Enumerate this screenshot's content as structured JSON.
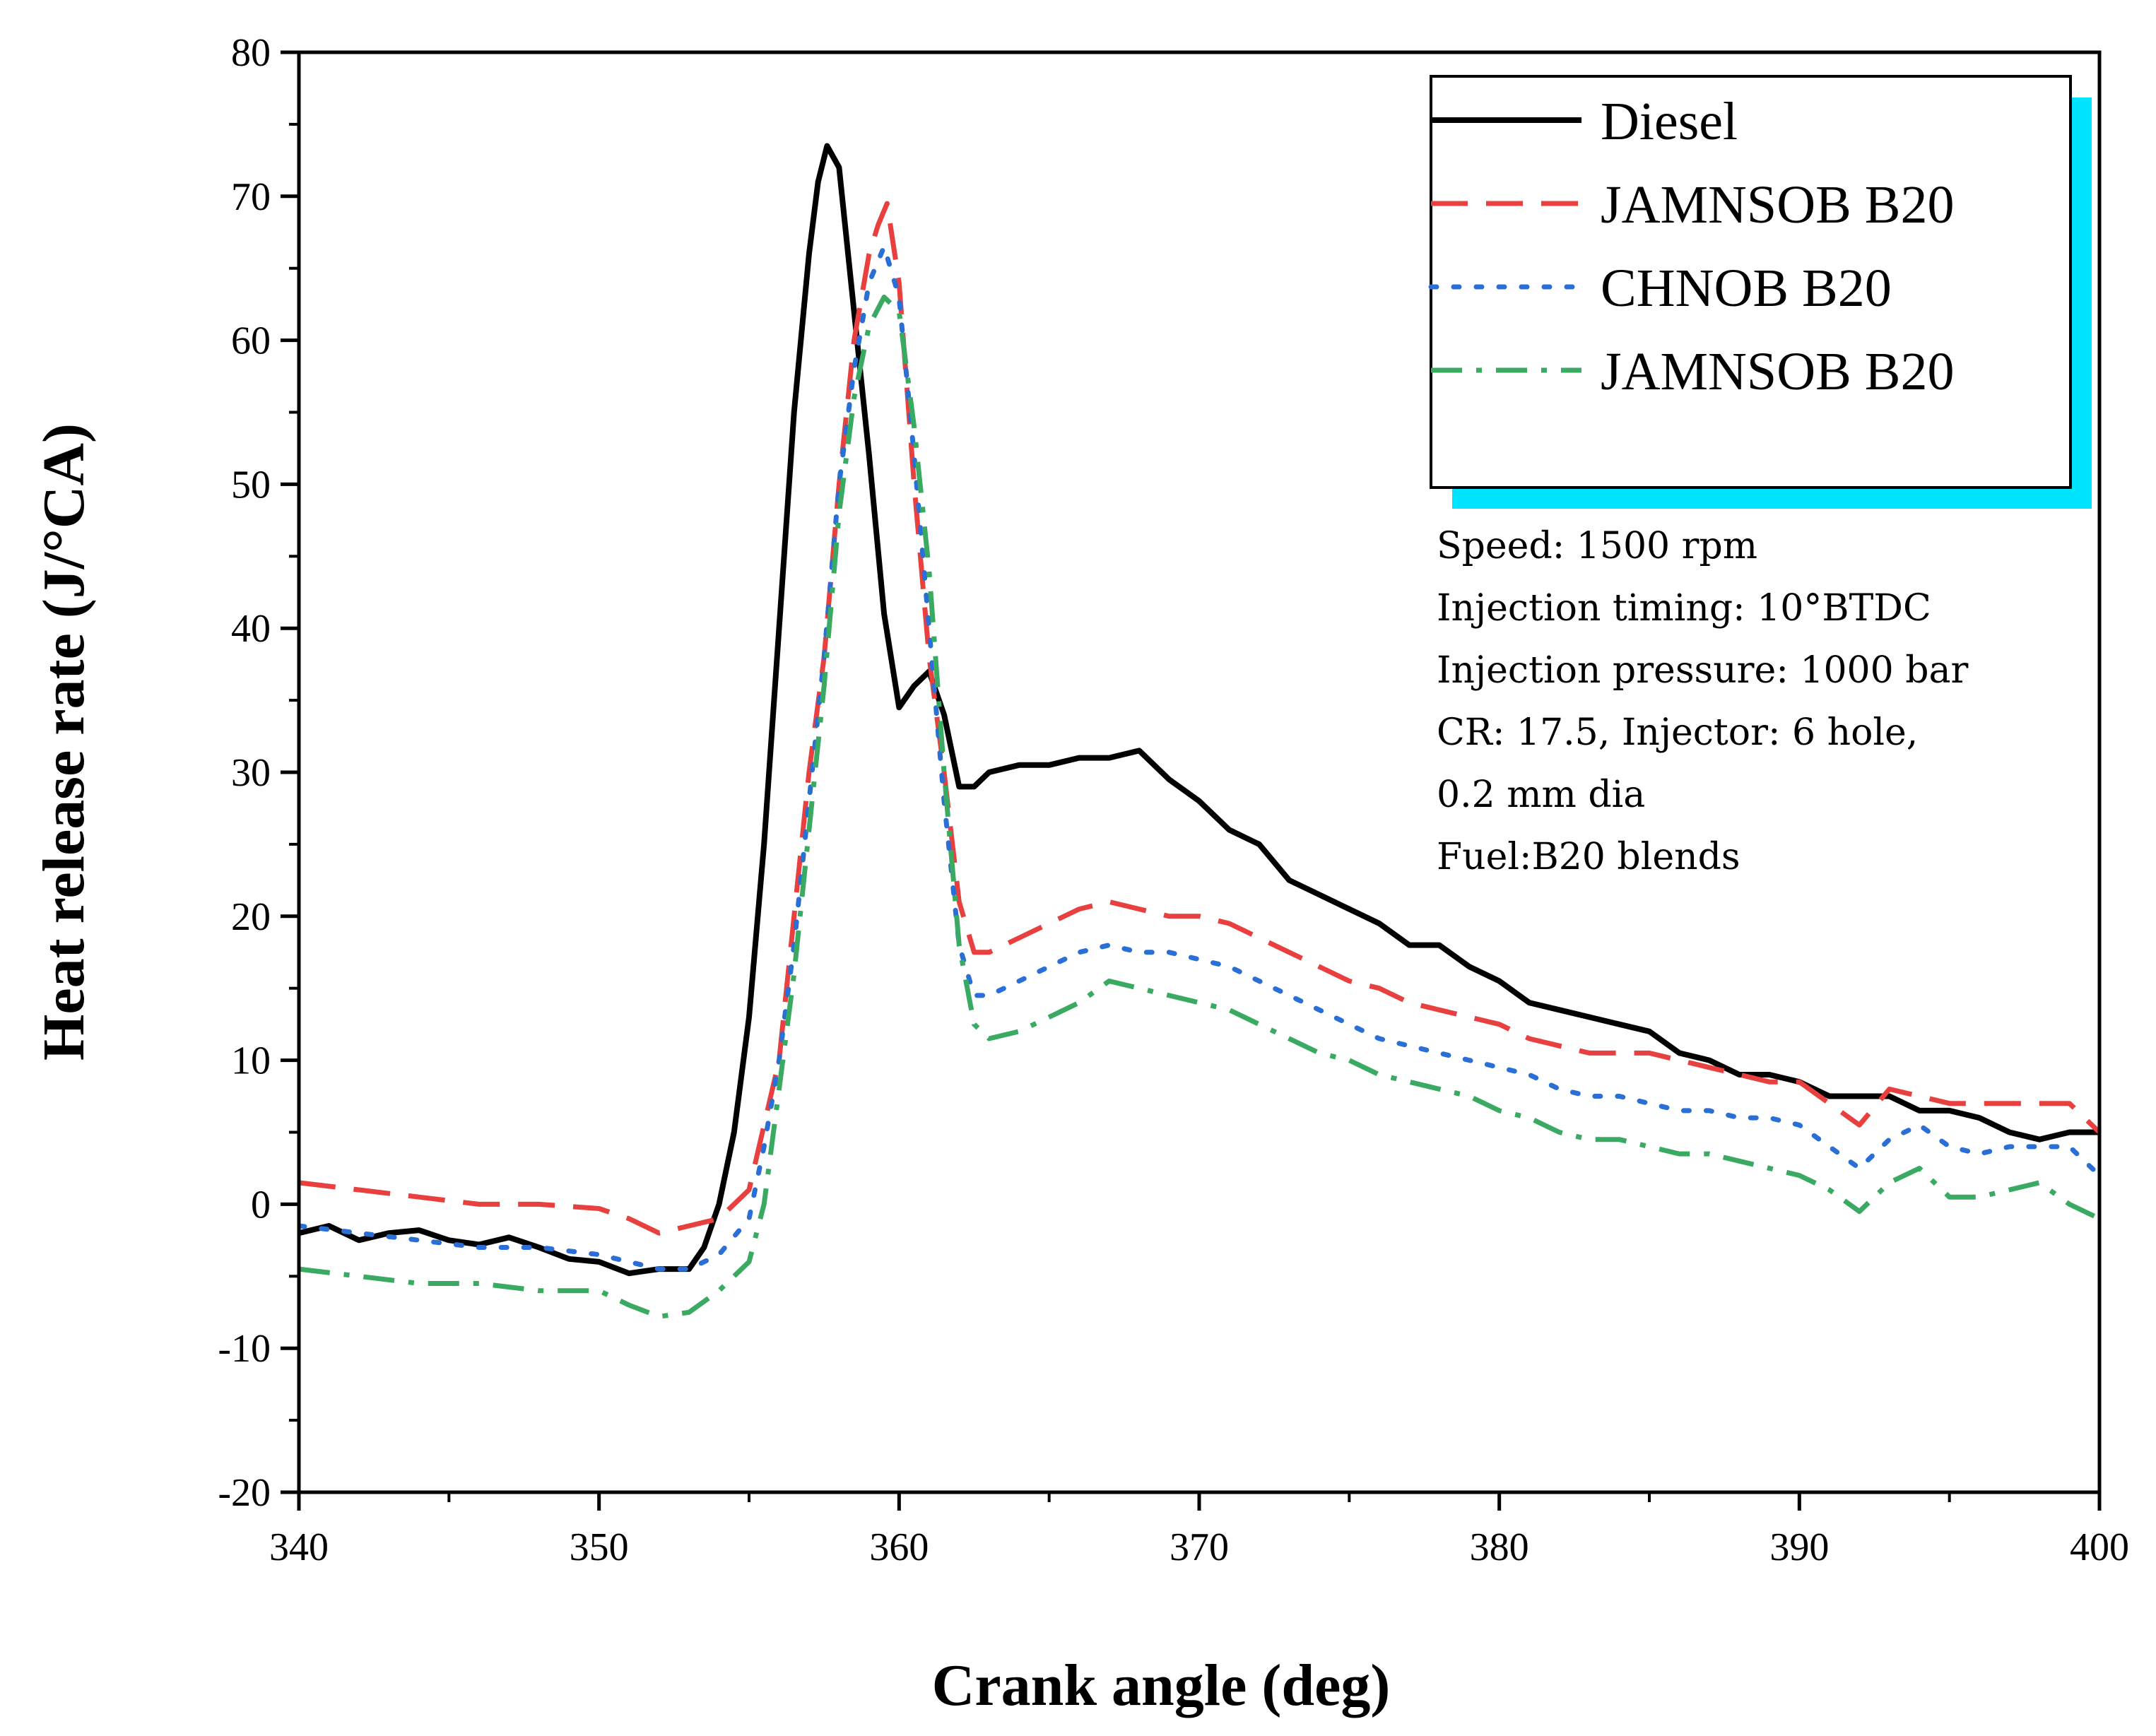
{
  "chart_data": {
    "type": "line",
    "title": "",
    "xlabel": "Crank angle (deg)",
    "ylabel": "Heat release rate (J/°CA)",
    "xlim": [
      340,
      400
    ],
    "ylim": [
      -20,
      80
    ],
    "xticks": [
      340,
      350,
      360,
      370,
      380,
      390,
      400
    ],
    "yticks": [
      -20,
      -10,
      0,
      10,
      20,
      30,
      40,
      50,
      60,
      70,
      80
    ],
    "grid": false,
    "legend_position": "top-right",
    "series": [
      {
        "name": "Diesel",
        "color": "#000000",
        "style": "solid",
        "points": [
          [
            340,
            -2
          ],
          [
            341,
            -1.5
          ],
          [
            342,
            -2.5
          ],
          [
            343,
            -2
          ],
          [
            344,
            -1.8
          ],
          [
            345,
            -2.5
          ],
          [
            346,
            -2.8
          ],
          [
            347,
            -2.3
          ],
          [
            348,
            -3
          ],
          [
            349,
            -3.8
          ],
          [
            350,
            -4
          ],
          [
            351,
            -4.8
          ],
          [
            352,
            -4.5
          ],
          [
            353,
            -4.5
          ],
          [
            353.5,
            -3
          ],
          [
            354,
            0
          ],
          [
            354.5,
            5
          ],
          [
            355,
            13
          ],
          [
            355.5,
            25
          ],
          [
            356,
            40
          ],
          [
            356.5,
            55
          ],
          [
            357,
            66
          ],
          [
            357.3,
            71
          ],
          [
            357.6,
            73.5
          ],
          [
            358,
            72
          ],
          [
            358.5,
            62
          ],
          [
            359,
            52
          ],
          [
            359.5,
            41
          ],
          [
            360,
            34.5
          ],
          [
            360.5,
            36
          ],
          [
            361,
            37
          ],
          [
            361.5,
            34
          ],
          [
            362,
            29
          ],
          [
            362.5,
            29
          ],
          [
            363,
            30
          ],
          [
            364,
            30.5
          ],
          [
            365,
            30.5
          ],
          [
            366,
            31
          ],
          [
            367,
            31
          ],
          [
            368,
            31.5
          ],
          [
            369,
            29.5
          ],
          [
            370,
            28
          ],
          [
            371,
            26
          ],
          [
            372,
            25
          ],
          [
            373,
            22.5
          ],
          [
            374,
            21.5
          ],
          [
            375,
            20.5
          ],
          [
            376,
            19.5
          ],
          [
            377,
            18
          ],
          [
            378,
            18
          ],
          [
            379,
            16.5
          ],
          [
            380,
            15.5
          ],
          [
            381,
            14
          ],
          [
            382,
            13.5
          ],
          [
            383,
            13
          ],
          [
            384,
            12.5
          ],
          [
            385,
            12
          ],
          [
            386,
            10.5
          ],
          [
            387,
            10
          ],
          [
            388,
            9
          ],
          [
            389,
            9
          ],
          [
            390,
            8.5
          ],
          [
            391,
            7.5
          ],
          [
            392,
            7.5
          ],
          [
            393,
            7.5
          ],
          [
            394,
            6.5
          ],
          [
            395,
            6.5
          ],
          [
            396,
            6
          ],
          [
            397,
            5
          ],
          [
            398,
            4.5
          ],
          [
            399,
            5
          ],
          [
            400,
            5
          ]
        ]
      },
      {
        "name": "JAMNSOB B20",
        "color": "#e8403f",
        "style": "dashed",
        "points": [
          [
            340,
            1.5
          ],
          [
            342,
            1
          ],
          [
            344,
            0.5
          ],
          [
            346,
            0
          ],
          [
            348,
            0
          ],
          [
            350,
            -0.3
          ],
          [
            351,
            -1
          ],
          [
            352,
            -2
          ],
          [
            353,
            -1.5
          ],
          [
            354,
            -1
          ],
          [
            355,
            1
          ],
          [
            356,
            10
          ],
          [
            356.5,
            20
          ],
          [
            357,
            30
          ],
          [
            357.5,
            38
          ],
          [
            358,
            50
          ],
          [
            358.5,
            60
          ],
          [
            359,
            66
          ],
          [
            359.3,
            68
          ],
          [
            359.6,
            69.5
          ],
          [
            360,
            64
          ],
          [
            360.5,
            50
          ],
          [
            361,
            38
          ],
          [
            361.5,
            30
          ],
          [
            362,
            21
          ],
          [
            362.5,
            17.5
          ],
          [
            363,
            17.5
          ],
          [
            364,
            18.5
          ],
          [
            365,
            19.5
          ],
          [
            366,
            20.5
          ],
          [
            367,
            21
          ],
          [
            368,
            20.5
          ],
          [
            369,
            20
          ],
          [
            370,
            20
          ],
          [
            371,
            19.5
          ],
          [
            372,
            18.5
          ],
          [
            373,
            17.5
          ],
          [
            374,
            16.5
          ],
          [
            375,
            15.5
          ],
          [
            376,
            15
          ],
          [
            377,
            14
          ],
          [
            378,
            13.5
          ],
          [
            379,
            13
          ],
          [
            380,
            12.5
          ],
          [
            381,
            11.5
          ],
          [
            382,
            11
          ],
          [
            383,
            10.5
          ],
          [
            384,
            10.5
          ],
          [
            385,
            10.5
          ],
          [
            386,
            10
          ],
          [
            387,
            9.5
          ],
          [
            388,
            9
          ],
          [
            389,
            8.5
          ],
          [
            390,
            8.5
          ],
          [
            391,
            7
          ],
          [
            392,
            5.5
          ],
          [
            393,
            8
          ],
          [
            394,
            7.5
          ],
          [
            395,
            7
          ],
          [
            396,
            7
          ],
          [
            397,
            7
          ],
          [
            398,
            7
          ],
          [
            399,
            7
          ],
          [
            400,
            5
          ]
        ]
      },
      {
        "name": "CHNOB B20",
        "color": "#2a6fd6",
        "style": "dotted",
        "points": [
          [
            340,
            -1.5
          ],
          [
            342,
            -2
          ],
          [
            344,
            -2.5
          ],
          [
            346,
            -3
          ],
          [
            348,
            -3
          ],
          [
            350,
            -3.5
          ],
          [
            351,
            -4
          ],
          [
            352,
            -4.5
          ],
          [
            353,
            -4.5
          ],
          [
            354,
            -3.5
          ],
          [
            355,
            -1
          ],
          [
            355.5,
            4
          ],
          [
            356,
            10
          ],
          [
            356.5,
            18
          ],
          [
            357,
            28
          ],
          [
            357.5,
            38
          ],
          [
            358,
            50
          ],
          [
            358.5,
            58
          ],
          [
            359,
            64
          ],
          [
            359.5,
            66.5
          ],
          [
            360,
            63
          ],
          [
            360.5,
            52
          ],
          [
            361,
            40
          ],
          [
            361.5,
            28
          ],
          [
            362,
            18
          ],
          [
            362.5,
            14.5
          ],
          [
            363,
            14.5
          ],
          [
            364,
            15.5
          ],
          [
            365,
            16.5
          ],
          [
            366,
            17.5
          ],
          [
            367,
            18
          ],
          [
            368,
            17.5
          ],
          [
            369,
            17.5
          ],
          [
            370,
            17
          ],
          [
            371,
            16.5
          ],
          [
            372,
            15.5
          ],
          [
            373,
            14.5
          ],
          [
            374,
            13.5
          ],
          [
            375,
            12.5
          ],
          [
            376,
            11.5
          ],
          [
            377,
            11
          ],
          [
            378,
            10.5
          ],
          [
            379,
            10
          ],
          [
            380,
            9.5
          ],
          [
            381,
            9
          ],
          [
            382,
            8
          ],
          [
            383,
            7.5
          ],
          [
            384,
            7.5
          ],
          [
            385,
            7
          ],
          [
            386,
            6.5
          ],
          [
            387,
            6.5
          ],
          [
            388,
            6
          ],
          [
            389,
            6
          ],
          [
            390,
            5.5
          ],
          [
            391,
            4
          ],
          [
            392,
            2.5
          ],
          [
            393,
            4.5
          ],
          [
            394,
            5.5
          ],
          [
            395,
            4
          ],
          [
            396,
            3.5
          ],
          [
            397,
            4
          ],
          [
            398,
            4
          ],
          [
            399,
            4
          ],
          [
            400,
            2
          ]
        ]
      },
      {
        "name": "JAMNSOB B20",
        "color": "#3aaa63",
        "style": "dashdot",
        "points": [
          [
            340,
            -4.5
          ],
          [
            342,
            -5
          ],
          [
            344,
            -5.5
          ],
          [
            346,
            -5.5
          ],
          [
            348,
            -6
          ],
          [
            350,
            -6
          ],
          [
            351,
            -7
          ],
          [
            352,
            -7.8
          ],
          [
            353,
            -7.5
          ],
          [
            354,
            -6
          ],
          [
            355,
            -4
          ],
          [
            355.5,
            0
          ],
          [
            356,
            8
          ],
          [
            356.5,
            16
          ],
          [
            357,
            26
          ],
          [
            357.5,
            36
          ],
          [
            358,
            48
          ],
          [
            358.5,
            56
          ],
          [
            359,
            61
          ],
          [
            359.5,
            63
          ],
          [
            360,
            62
          ],
          [
            360.5,
            54
          ],
          [
            361,
            44
          ],
          [
            361.5,
            30
          ],
          [
            362,
            18
          ],
          [
            362.5,
            12.5
          ],
          [
            363,
            11.5
          ],
          [
            364,
            12
          ],
          [
            365,
            13
          ],
          [
            366,
            14
          ],
          [
            367,
            15.5
          ],
          [
            368,
            15
          ],
          [
            369,
            14.5
          ],
          [
            370,
            14
          ],
          [
            371,
            13.5
          ],
          [
            372,
            12.5
          ],
          [
            373,
            11.5
          ],
          [
            374,
            10.5
          ],
          [
            375,
            10
          ],
          [
            376,
            9
          ],
          [
            377,
            8.5
          ],
          [
            378,
            8
          ],
          [
            379,
            7.5
          ],
          [
            380,
            6.5
          ],
          [
            381,
            6
          ],
          [
            382,
            5
          ],
          [
            383,
            4.5
          ],
          [
            384,
            4.5
          ],
          [
            385,
            4
          ],
          [
            386,
            3.5
          ],
          [
            387,
            3.5
          ],
          [
            388,
            3
          ],
          [
            389,
            2.5
          ],
          [
            390,
            2
          ],
          [
            391,
            1
          ],
          [
            392,
            -0.5
          ],
          [
            393,
            1.5
          ],
          [
            394,
            2.5
          ],
          [
            395,
            0.5
          ],
          [
            396,
            0.5
          ],
          [
            397,
            1
          ],
          [
            398,
            1.5
          ],
          [
            399,
            0
          ],
          [
            400,
            -1
          ]
        ]
      }
    ],
    "annotations": [
      "Speed: 1500 rpm",
      "Injection timing: 10°BTDC",
      "Injection pressure: 1000 bar",
      "CR: 17.5, Injector: 6 hole,",
      "0.2 mm dia",
      "Fuel:B20 blends"
    ],
    "legend_shadow_color": "#00e5ff"
  }
}
